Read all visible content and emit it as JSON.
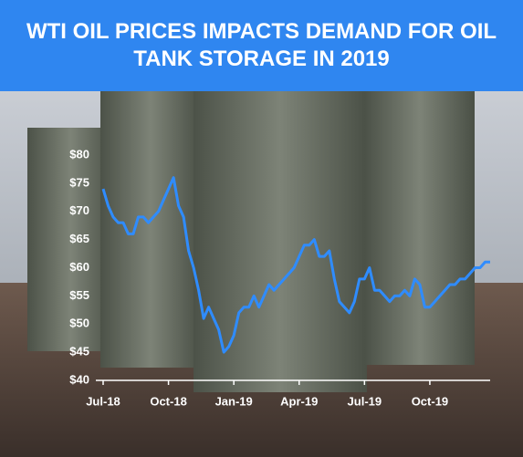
{
  "chart_data": {
    "type": "line",
    "title": "WTI OIL PRICES IMPACTS DEMAND FOR OIL TANK STORAGE IN 2019",
    "values": [
      74,
      71,
      69,
      68,
      68,
      66,
      66,
      69,
      69,
      68,
      69,
      70,
      72,
      74,
      76,
      71,
      69,
      63,
      60,
      56,
      51,
      53,
      51,
      49,
      45,
      46,
      48,
      52,
      53,
      53,
      55,
      53,
      55,
      57,
      56,
      57,
      58,
      59,
      60,
      62,
      64,
      64,
      65,
      62,
      62,
      63,
      58,
      54,
      53,
      52,
      54,
      58,
      58,
      60,
      56,
      56,
      55,
      54,
      55,
      55,
      56,
      55,
      58,
      57,
      53,
      53,
      54,
      55,
      56,
      57,
      57,
      58,
      58,
      59,
      60,
      60,
      61,
      61
    ],
    "color": "#2f8cff",
    "xlim": [
      0,
      77
    ],
    "xticks": [
      {
        "value": 0,
        "label": "Jul-18"
      },
      {
        "value": 13,
        "label": "Oct-18"
      },
      {
        "value": 26,
        "label": "Jan-19"
      },
      {
        "value": 39,
        "label": "Apr-19"
      },
      {
        "value": 52,
        "label": "Jul-19"
      },
      {
        "value": 65,
        "label": "Oct-19"
      }
    ],
    "ylim": [
      40,
      80
    ],
    "yticks": [
      {
        "value": 40,
        "label": "$40"
      },
      {
        "value": 45,
        "label": "$45"
      },
      {
        "value": 50,
        "label": "$50"
      },
      {
        "value": 55,
        "label": "$55"
      },
      {
        "value": 60,
        "label": "$60"
      },
      {
        "value": 65,
        "label": "$65"
      },
      {
        "value": 70,
        "label": "$70"
      },
      {
        "value": 75,
        "label": "$75"
      },
      {
        "value": 80,
        "label": "$80"
      }
    ]
  }
}
